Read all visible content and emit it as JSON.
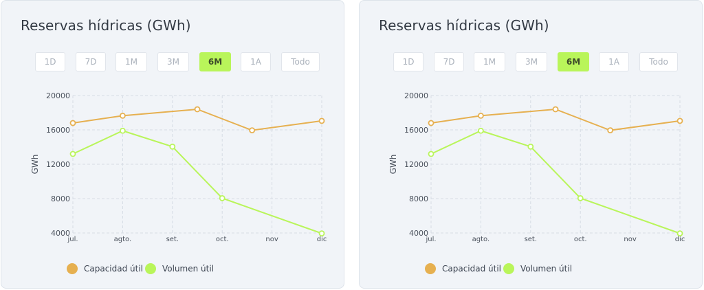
{
  "range_buttons": [
    "1D",
    "7D",
    "1M",
    "3M",
    "6M",
    "1A",
    "Todo"
  ],
  "active_range": "6M",
  "colors": {
    "capacidad": "#e6b050",
    "volumen": "#b9f55a",
    "grid": "#d6dce4",
    "axis_text": "#4a515c"
  },
  "panels": [
    {
      "title": "Reservas hídricas (GWh)",
      "legend": [
        "Capacidad útil",
        "Volumen útil"
      ]
    },
    {
      "title": "Reservas hídricas (GWh)",
      "legend": [
        "Capacidad útil",
        "Volumen útil"
      ]
    }
  ],
  "chart_data": [
    {
      "type": "line",
      "title": "Reservas hídricas (GWh)",
      "ylabel": "GWh",
      "xlabel": "",
      "x_ticks": [
        "jul.",
        "agto.",
        "set.",
        "oct.",
        "nov",
        "dic"
      ],
      "y_ticks": [
        4000,
        8000,
        12000,
        16000,
        20000
      ],
      "ylim": [
        4000,
        20000
      ],
      "x_range": [
        0,
        5
      ],
      "grid": true,
      "legend_position": "bottom-left",
      "series": [
        {
          "name": "Capacidad útil",
          "color": "#e6b050",
          "points": [
            [
              0,
              16800
            ],
            [
              1,
              17650
            ],
            [
              2.5,
              18400
            ],
            [
              3.6,
              15950
            ],
            [
              5,
              17050
            ]
          ]
        },
        {
          "name": "Volumen útil",
          "color": "#b9f55a",
          "points": [
            [
              0,
              13200
            ],
            [
              1,
              15900
            ],
            [
              2,
              14050
            ],
            [
              3,
              8050
            ],
            [
              5,
              3950
            ]
          ]
        }
      ]
    },
    {
      "type": "line",
      "title": "Reservas hídricas (GWh)",
      "ylabel": "GWh",
      "xlabel": "",
      "x_ticks": [
        "jul.",
        "agto.",
        "set.",
        "oct.",
        "nov",
        "dic"
      ],
      "y_ticks": [
        4000,
        8000,
        12000,
        16000,
        20000
      ],
      "ylim": [
        4000,
        20000
      ],
      "x_range": [
        0,
        5
      ],
      "grid": true,
      "legend_position": "bottom-left",
      "series": [
        {
          "name": "Capacidad útil",
          "color": "#e6b050",
          "points": [
            [
              0,
              16800
            ],
            [
              1,
              17650
            ],
            [
              2.5,
              18400
            ],
            [
              3.6,
              15950
            ],
            [
              5,
              17050
            ]
          ]
        },
        {
          "name": "Volumen útil",
          "color": "#b9f55a",
          "points": [
            [
              0,
              13200
            ],
            [
              1,
              15900
            ],
            [
              2,
              14050
            ],
            [
              3,
              8050
            ],
            [
              5,
              3950
            ]
          ]
        }
      ]
    }
  ]
}
